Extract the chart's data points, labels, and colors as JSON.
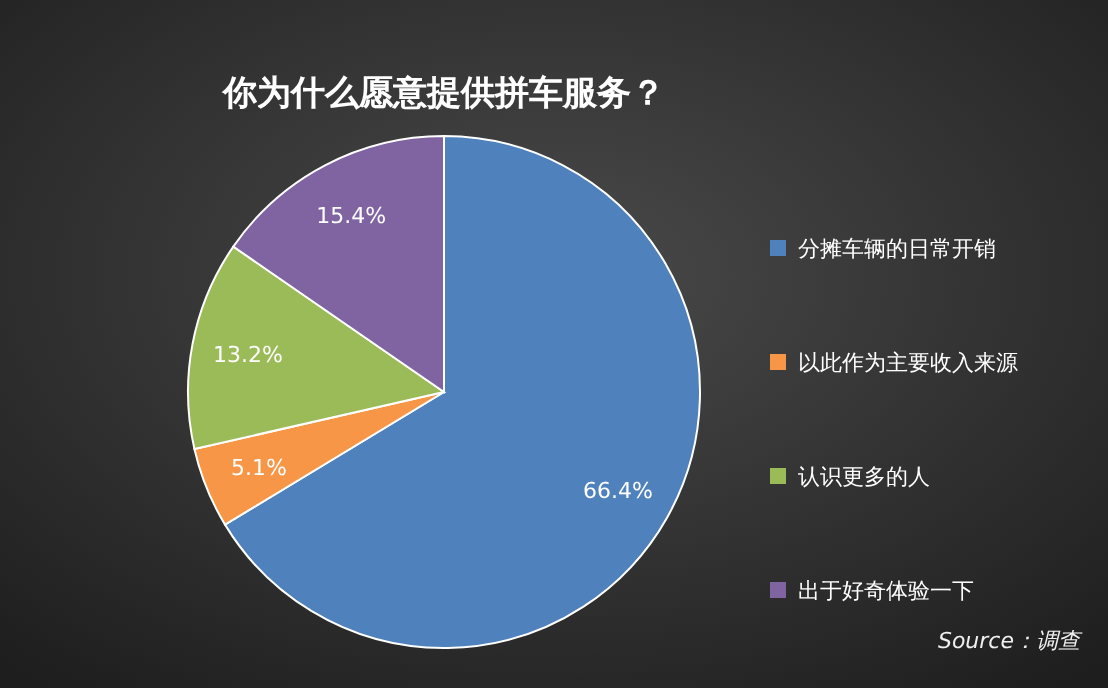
{
  "chart_data": {
    "type": "pie",
    "title": "你为什么愿意提供拼车服务？",
    "categories": [
      "分摊车辆的日常开销",
      "以此作为主要收入来源",
      "认识更多的人",
      "出于好奇体验一下"
    ],
    "values": [
      66.4,
      5.1,
      13.2,
      15.4
    ],
    "colors": [
      "#4f81bd",
      "#f79646",
      "#9bbb59",
      "#8064a2"
    ],
    "value_labels": [
      "66.4%",
      "5.1%",
      "13.2%",
      "15.4%"
    ],
    "legend": "right",
    "annotations": [
      "Source：调查"
    ]
  }
}
